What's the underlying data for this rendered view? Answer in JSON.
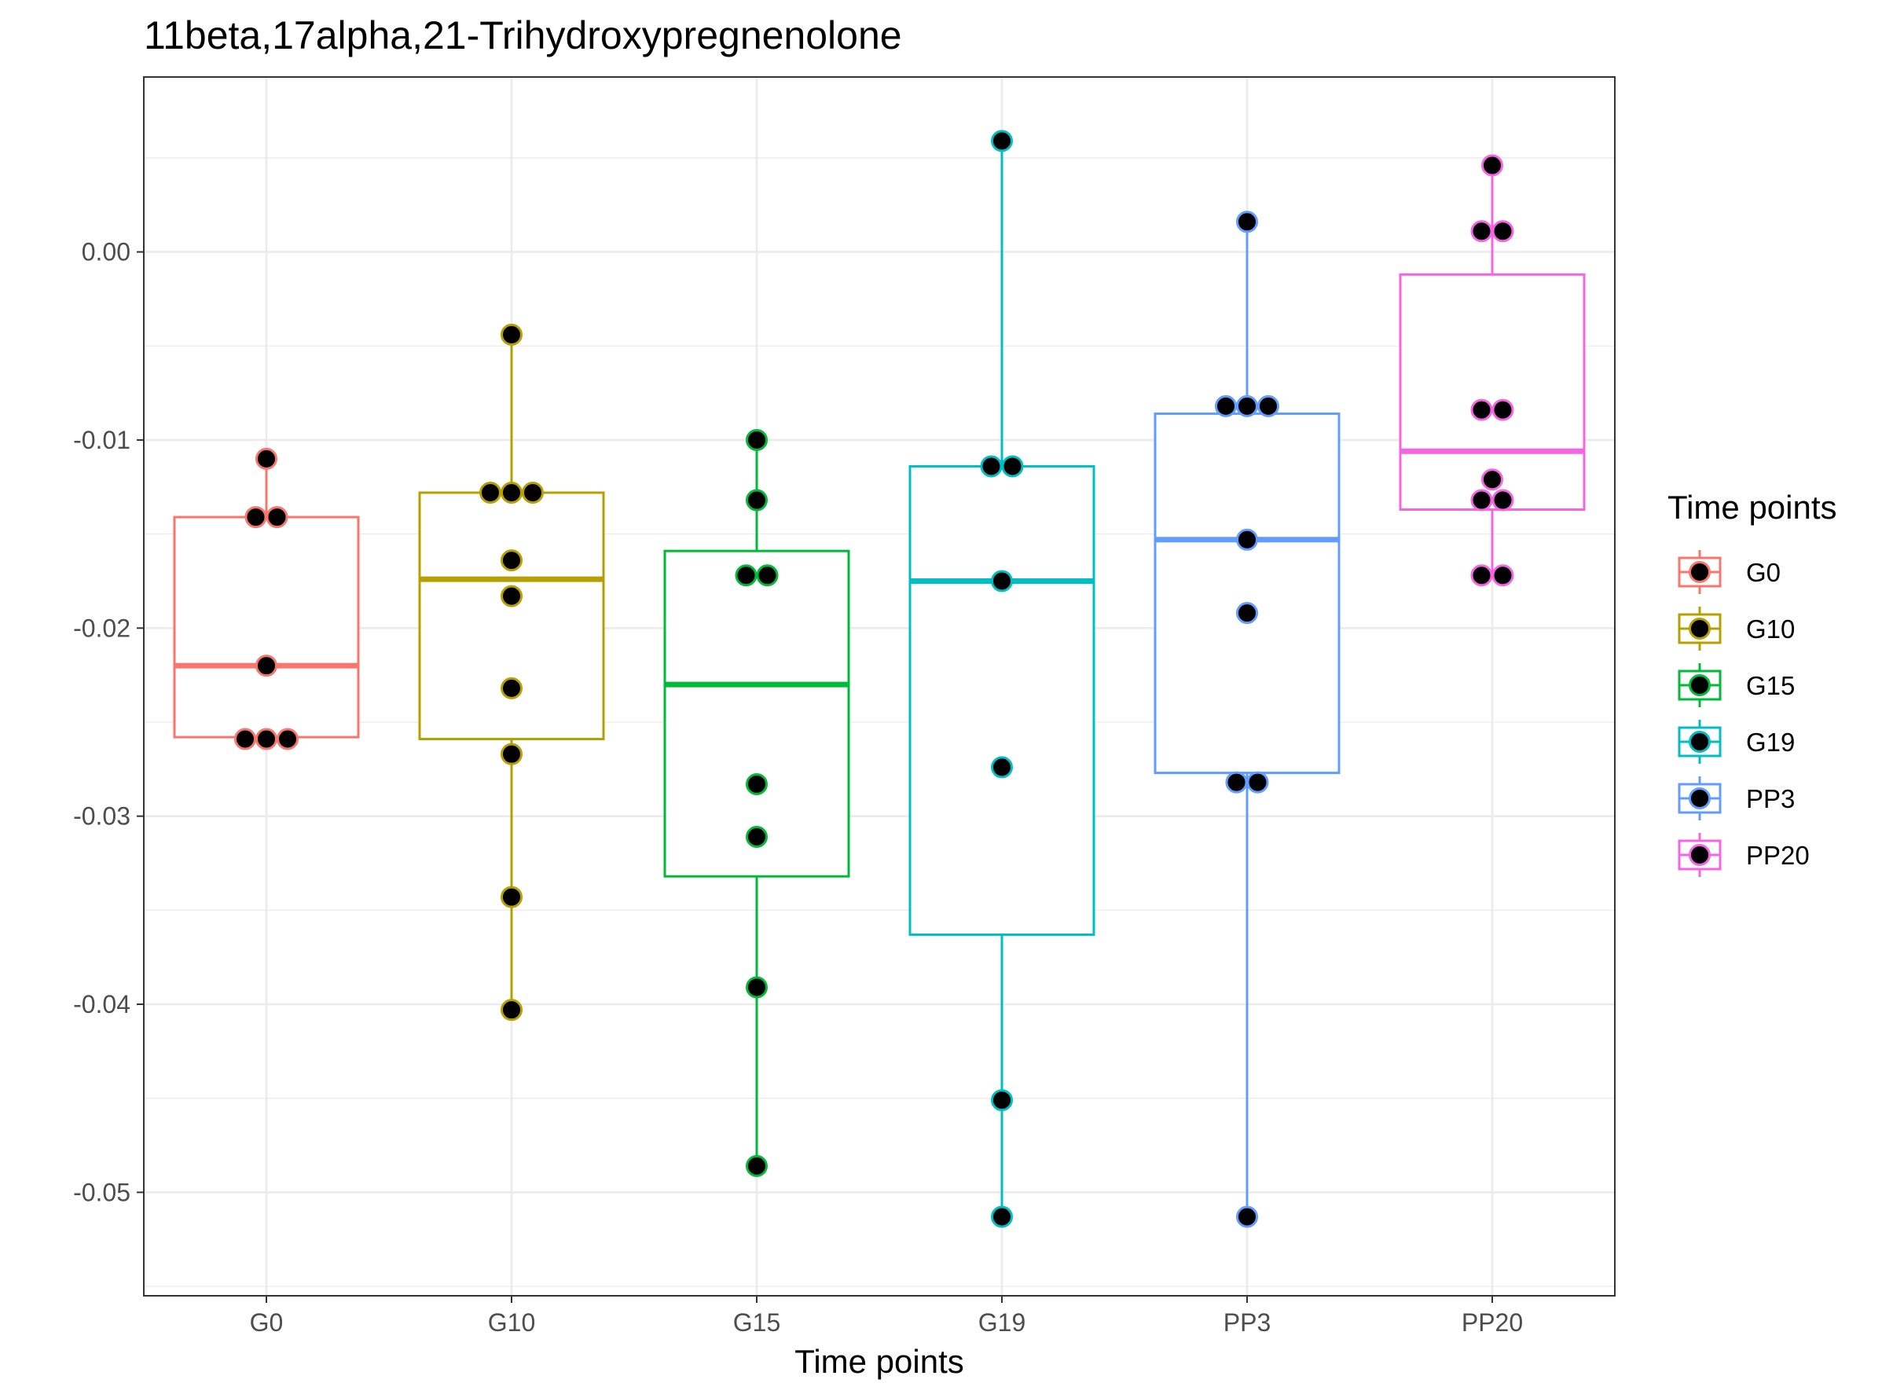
{
  "chart_data": {
    "type": "box",
    "title": "11beta,17alpha,21-Trihydroxypregnenolone",
    "xlabel": "Time points",
    "ylabel": "",
    "ylim": [
      -0.0555,
      0.0093
    ],
    "y_ticks": [
      0.0,
      -0.01,
      -0.02,
      -0.03,
      -0.04,
      -0.05
    ],
    "y_tick_labels": [
      "0.00",
      "-0.01",
      "-0.02",
      "-0.03",
      "-0.04",
      "-0.05"
    ],
    "grid": true,
    "legend": {
      "title": "Time points",
      "position": "right"
    },
    "categories": [
      "G0",
      "G10",
      "G15",
      "G19",
      "PP3",
      "PP20"
    ],
    "colors": [
      "#F8766D",
      "#B79F00",
      "#00BA38",
      "#00BFC4",
      "#619CFF",
      "#F564E3"
    ],
    "boxes": [
      {
        "name": "G0",
        "lower_whisker": -0.0259,
        "q1": -0.0258,
        "median": -0.022,
        "q3": -0.0141,
        "upper_whisker": -0.011
      },
      {
        "name": "G10",
        "lower_whisker": -0.0403,
        "q1": -0.0259,
        "median": -0.0174,
        "q3": -0.0128,
        "upper_whisker": -0.0044
      },
      {
        "name": "G15",
        "lower_whisker": -0.0486,
        "q1": -0.0332,
        "median": -0.023,
        "q3": -0.0159,
        "upper_whisker": -0.01
      },
      {
        "name": "G19",
        "lower_whisker": -0.0513,
        "q1": -0.0363,
        "median": -0.0175,
        "q3": -0.0114,
        "upper_whisker": 0.0059
      },
      {
        "name": "PP3",
        "lower_whisker": -0.0513,
        "q1": -0.0277,
        "median": -0.0153,
        "q3": -0.0086,
        "upper_whisker": 0.0016
      },
      {
        "name": "PP20",
        "lower_whisker": -0.0171,
        "q1": -0.0137,
        "median": -0.0106,
        "q3": -0.0012,
        "upper_whisker": 0.0046
      }
    ],
    "points": [
      {
        "group": "G0",
        "values": [
          -0.011,
          -0.0141,
          -0.0141,
          -0.022,
          -0.0259,
          -0.0259,
          -0.0259
        ],
        "offsets": [
          0,
          -0.5,
          0.5,
          0,
          -1,
          0,
          1
        ]
      },
      {
        "group": "G10",
        "values": [
          -0.0044,
          -0.0128,
          -0.0128,
          -0.0128,
          -0.0164,
          -0.0183,
          -0.0232,
          -0.0267,
          -0.0343,
          -0.0403
        ],
        "offsets": [
          0,
          -1,
          0,
          1,
          0,
          0,
          0,
          0,
          0,
          0
        ]
      },
      {
        "group": "G15",
        "values": [
          -0.01,
          -0.0132,
          -0.0172,
          -0.0172,
          -0.0283,
          -0.0311,
          -0.0391,
          -0.0486
        ],
        "offsets": [
          0,
          0,
          -0.5,
          0.5,
          0,
          0,
          0,
          0
        ]
      },
      {
        "group": "G19",
        "values": [
          0.0059,
          -0.0114,
          -0.0114,
          -0.0175,
          -0.0274,
          -0.0451,
          -0.0513
        ],
        "offsets": [
          0,
          -0.5,
          0.5,
          0,
          0,
          0,
          0
        ]
      },
      {
        "group": "PP3",
        "values": [
          0.0016,
          -0.0082,
          -0.0082,
          -0.0082,
          -0.0153,
          -0.0192,
          -0.0282,
          -0.0282,
          -0.0513
        ],
        "offsets": [
          0,
          -1,
          0,
          1,
          0,
          0,
          -0.5,
          0.5,
          0
        ]
      },
      {
        "group": "PP20",
        "values": [
          0.0046,
          0.0011,
          0.0011,
          -0.0084,
          -0.0084,
          -0.0121,
          -0.0132,
          -0.0132,
          -0.0172,
          -0.0172
        ],
        "offsets": [
          0,
          -0.5,
          0.5,
          -0.5,
          0.5,
          0,
          -0.5,
          0.5,
          -0.5,
          0.5
        ]
      }
    ]
  }
}
